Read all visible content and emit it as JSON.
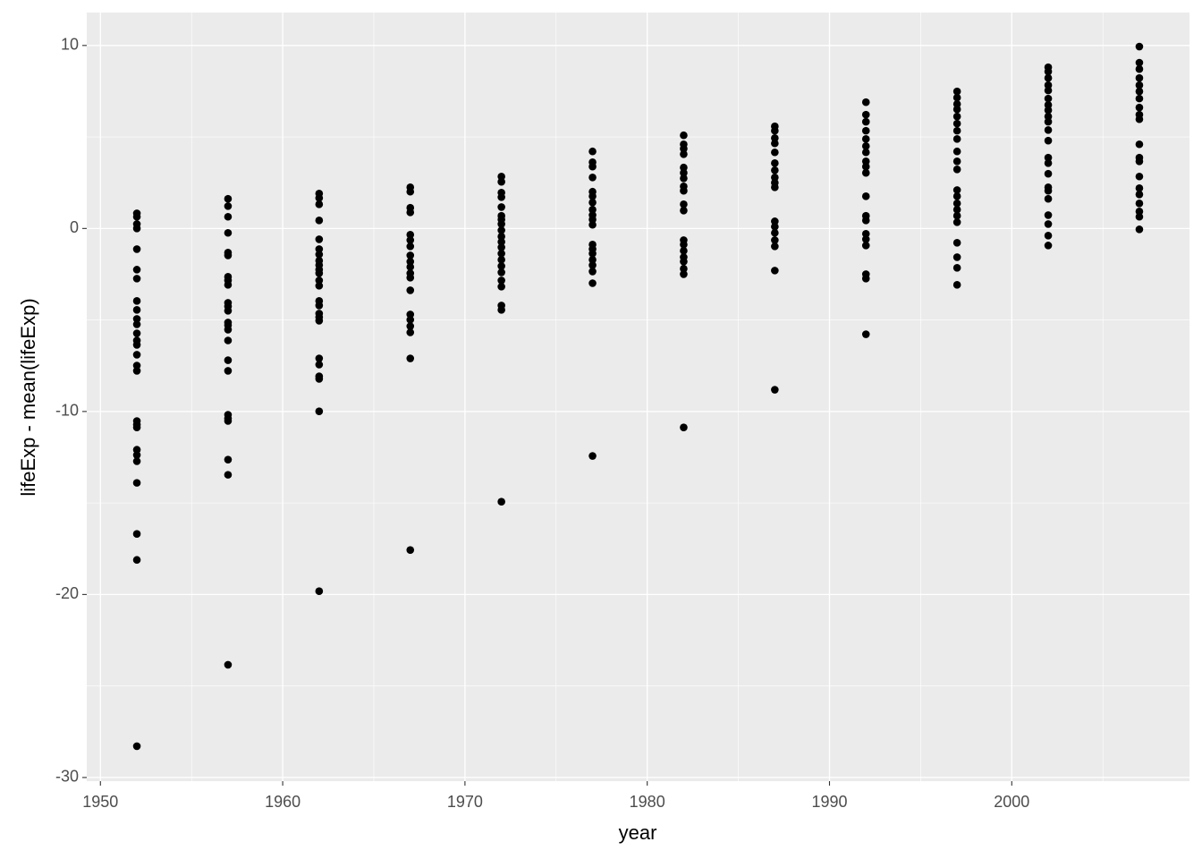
{
  "chart_data": {
    "type": "scatter",
    "x_label": "year",
    "y_label": "lifeExp - mean(lifeExp)",
    "color": "#000000",
    "panel_color": "#ebebeb",
    "grid": true,
    "xlim": [
      1949.25,
      2009.75
    ],
    "ylim": [
      -30.2,
      11.8
    ],
    "xticks": [
      1950,
      1960,
      1970,
      1980,
      1990,
      2000
    ],
    "yticks": [
      -30,
      -20,
      -10,
      0,
      10
    ],
    "x_minor_ticks": [
      1955,
      1965,
      1975,
      1985,
      1995,
      2005
    ],
    "y_minor_ticks": [
      -25,
      -15,
      -5,
      5
    ],
    "x": [
      1952,
      1952,
      1952,
      1952,
      1952,
      1952,
      1952,
      1952,
      1952,
      1952,
      1952,
      1952,
      1952,
      1952,
      1952,
      1952,
      1952,
      1952,
      1952,
      1952,
      1952,
      1952,
      1952,
      1952,
      1952,
      1952,
      1952,
      1957,
      1957,
      1957,
      1957,
      1957,
      1957,
      1957,
      1957,
      1957,
      1957,
      1957,
      1957,
      1957,
      1957,
      1957,
      1957,
      1957,
      1957,
      1957,
      1957,
      1957,
      1957,
      1957,
      1957,
      1962,
      1962,
      1962,
      1962,
      1962,
      1962,
      1962,
      1962,
      1962,
      1962,
      1962,
      1962,
      1962,
      1962,
      1962,
      1962,
      1962,
      1962,
      1962,
      1962,
      1962,
      1962,
      1962,
      1962,
      1967,
      1967,
      1967,
      1967,
      1967,
      1967,
      1967,
      1967,
      1967,
      1967,
      1967,
      1967,
      1967,
      1967,
      1967,
      1967,
      1967,
      1967,
      1967,
      1972,
      1972,
      1972,
      1972,
      1972,
      1972,
      1972,
      1972,
      1972,
      1972,
      1972,
      1972,
      1972,
      1972,
      1972,
      1972,
      1972,
      1972,
      1972,
      1972,
      1972,
      1977,
      1977,
      1977,
      1977,
      1977,
      1977,
      1977,
      1977,
      1977,
      1977,
      1977,
      1977,
      1977,
      1977,
      1977,
      1977,
      1977,
      1977,
      1977,
      1982,
      1982,
      1982,
      1982,
      1982,
      1982,
      1982,
      1982,
      1982,
      1982,
      1982,
      1982,
      1982,
      1982,
      1982,
      1982,
      1982,
      1982,
      1982,
      1987,
      1987,
      1987,
      1987,
      1987,
      1987,
      1987,
      1987,
      1987,
      1987,
      1987,
      1987,
      1987,
      1987,
      1987,
      1987,
      1987,
      1992,
      1992,
      1992,
      1992,
      1992,
      1992,
      1992,
      1992,
      1992,
      1992,
      1992,
      1992,
      1992,
      1992,
      1992,
      1992,
      1992,
      1992,
      1992,
      1997,
      1997,
      1997,
      1997,
      1997,
      1997,
      1997,
      1997,
      1997,
      1997,
      1997,
      1997,
      1997,
      1997,
      1997,
      1997,
      1997,
      1997,
      1997,
      1997,
      1997,
      2002,
      2002,
      2002,
      2002,
      2002,
      2002,
      2002,
      2002,
      2002,
      2002,
      2002,
      2002,
      2002,
      2002,
      2002,
      2002,
      2002,
      2002,
      2002,
      2002,
      2002,
      2002,
      2007,
      2007,
      2007,
      2007,
      2007,
      2007,
      2007,
      2007,
      2007,
      2007,
      2007,
      2007,
      2007,
      2007,
      2007,
      2007,
      2007,
      2007,
      2007,
      2007
    ],
    "values": [
      0.83,
      0.64,
      0.24,
      0,
      -1.13,
      -2.25,
      -2.74,
      -3.96,
      -4.45,
      -4.94,
      -5.24,
      -5.73,
      -6.12,
      -6.36,
      -6.9,
      -7.49,
      -7.78,
      -10.52,
      -10.72,
      -10.87,
      -12.09,
      -12.38,
      -12.72,
      -13.9,
      -16.69,
      -18.11,
      -28.29,
      1.62,
      1.22,
      0.64,
      -0.24,
      -1.32,
      -1.47,
      -2.64,
      -2.84,
      -3.08,
      -4.06,
      -4.26,
      -4.5,
      -5.14,
      -5.29,
      -5.53,
      -6.12,
      -7.2,
      -7.78,
      -10.18,
      -10.38,
      -10.52,
      -12.63,
      -13.46,
      -23.84,
      1.91,
      1.66,
      1.32,
      0.44,
      -0.59,
      -1.13,
      -1.42,
      -1.76,
      -2,
      -2.25,
      -2.45,
      -2.84,
      -3.13,
      -3.96,
      -4.21,
      -4.65,
      -4.85,
      -5.04,
      -7.1,
      -7.44,
      -8.08,
      -8.22,
      -9.99,
      -19.82,
      2.25,
      2.01,
      1.13,
      0.88,
      -0.34,
      -0.64,
      -0.98,
      -1.47,
      -1.81,
      -2.1,
      -2.45,
      -2.69,
      -3.38,
      -4.7,
      -4.99,
      -5.34,
      -5.68,
      -7.1,
      -17.57,
      2.84,
      2.55,
      1.96,
      1.71,
      1.17,
      0.69,
      0.49,
      0.24,
      -0.1,
      -0.44,
      -0.73,
      -1.03,
      -1.37,
      -1.71,
      -2.06,
      -2.4,
      -2.84,
      -3.18,
      -4.21,
      -4.45,
      -14.93,
      4.21,
      3.62,
      3.38,
      2.79,
      2.01,
      1.76,
      1.42,
      1.03,
      0.73,
      0.49,
      0.2,
      -0.88,
      -1.13,
      -1.37,
      -1.71,
      -2.01,
      -2.35,
      -2.99,
      -12.43,
      5.09,
      4.6,
      4.36,
      4.06,
      3.33,
      3.04,
      2.74,
      2.3,
      2.06,
      1.32,
      0.98,
      -0.64,
      -0.88,
      -1.22,
      -1.57,
      -1.81,
      -2.2,
      -2.5,
      -10.87,
      5.58,
      5.34,
      4.94,
      4.65,
      4.16,
      3.57,
      3.18,
      2.79,
      2.5,
      2.25,
      0.39,
      0.1,
      -0.24,
      -0.64,
      -0.98,
      -2.3,
      -8.81,
      6.9,
      6.22,
      5.83,
      5.34,
      4.89,
      4.5,
      4.16,
      3.67,
      3.38,
      3.04,
      1.76,
      0.69,
      0.44,
      -0.29,
      -0.59,
      -0.93,
      -2.5,
      -2.74,
      -5.78,
      7.49,
      7.15,
      6.8,
      6.51,
      6.12,
      5.73,
      5.34,
      4.89,
      4.21,
      3.67,
      3.23,
      2.1,
      1.76,
      1.37,
      1.03,
      0.69,
      0.34,
      -0.78,
      -1.57,
      -2.15,
      -3.08,
      8.81,
      8.57,
      8.22,
      7.83,
      7.54,
      7.1,
      6.75,
      6.46,
      6.12,
      5.83,
      5.38,
      4.8,
      3.87,
      3.57,
      2.99,
      2.25,
      2.06,
      1.62,
      0.73,
      0.24,
      -0.39,
      -0.93,
      9.94,
      9.06,
      8.71,
      8.22,
      7.83,
      7.49,
      7.1,
      6.61,
      6.22,
      5.97,
      4.6,
      3.87,
      3.67,
      2.84,
      2.2,
      1.86,
      1.37,
      0.93,
      0.64,
      -0.05
    ]
  }
}
